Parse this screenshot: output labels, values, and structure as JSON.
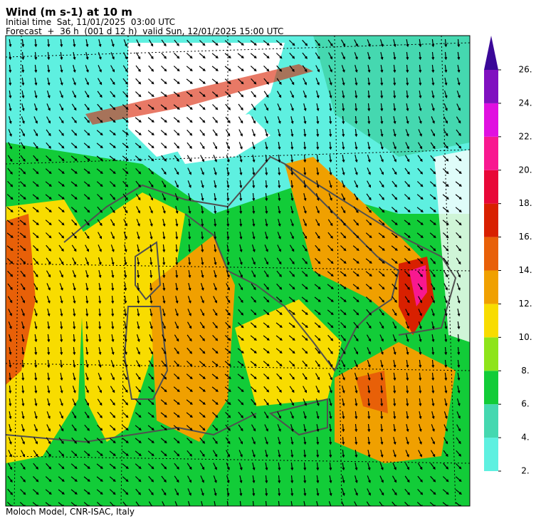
{
  "header": {
    "title": "Wind (m s-1) at 10 m",
    "initial_time": "Initial time  Sat, 11/01/2025  03:00 UTC",
    "forecast": "Forecast  +  36 h  (001 d 12 h)  valid Sun, 12/01/2025 15:00 UTC"
  },
  "colorbar": {
    "lim": [
      2,
      26
    ],
    "ticks": [
      {
        "value": 2,
        "label": "2."
      },
      {
        "value": 4,
        "label": "4."
      },
      {
        "value": 6,
        "label": "6."
      },
      {
        "value": 8,
        "label": "8."
      },
      {
        "value": 10,
        "label": "10."
      },
      {
        "value": 12,
        "label": "12."
      },
      {
        "value": 14,
        "label": "14."
      },
      {
        "value": 16,
        "label": "16."
      },
      {
        "value": 18,
        "label": "18."
      },
      {
        "value": 20,
        "label": "20."
      },
      {
        "value": 22,
        "label": "22."
      },
      {
        "value": 24,
        "label": "24."
      },
      {
        "value": 26,
        "label": "26."
      }
    ],
    "colors": [
      "#5ef0e0",
      "#45d8b0",
      "#12cc38",
      "#8ee41a",
      "#f8dc00",
      "#f0a000",
      "#e86008",
      "#d82000",
      "#e80838",
      "#f81890",
      "#e010e0",
      "#8010c0"
    ],
    "extend_color": "#3a0898"
  },
  "footer": "Moloch Model, CNR-ISAC, Italy"
}
